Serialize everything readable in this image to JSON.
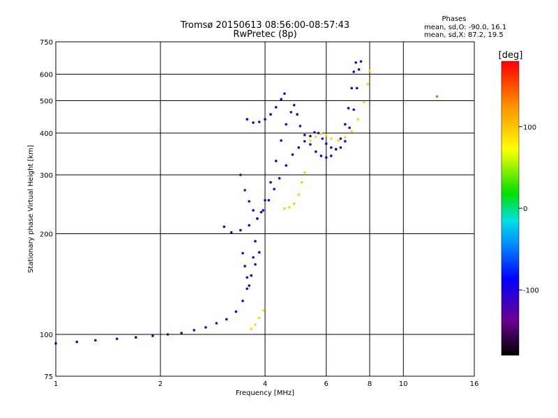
{
  "chart_data": {
    "type": "scatter",
    "title": "Tromsø 20150613 08:56:00-08:57:43",
    "subtitle": "RwPretec (8p)",
    "xlabel": "Frequency [MHz]",
    "ylabel": "Stationary phase Virtual Height [km]",
    "x_scale": "log",
    "y_scale": "log",
    "xlim": [
      1,
      16
    ],
    "ylim": [
      75,
      750
    ],
    "x_ticks": [
      1,
      2,
      4,
      6,
      8,
      10,
      16
    ],
    "x_tick_labels": [
      "1",
      "2",
      "4",
      "6",
      "8",
      "10",
      "16"
    ],
    "y_ticks": [
      75,
      100,
      200,
      300,
      400,
      500,
      600,
      750
    ],
    "y_tick_labels": [
      "75",
      "100",
      "200",
      "300",
      "400",
      "500",
      "600",
      "750"
    ],
    "grid": true,
    "stats": {
      "heading": "Phases",
      "line_o": "mean, sd,O: -90.0, 16.1",
      "line_x": "mean, sd,X:  87.2, 19.5"
    },
    "colorbar": {
      "label": "[deg]",
      "min": -180,
      "max": 180,
      "ticks": [
        100,
        0,
        -100
      ],
      "tick_labels": [
        "100",
        "0",
        "-100"
      ]
    },
    "traces": [
      {
        "name": "",
        "phase": -95,
        "points": [
          [
            1.0,
            94
          ],
          [
            1.15,
            95
          ],
          [
            1.3,
            96
          ],
          [
            1.5,
            97
          ],
          [
            1.7,
            98
          ],
          [
            1.9,
            99
          ],
          [
            2.1,
            100
          ],
          [
            2.3,
            101
          ],
          [
            2.5,
            103
          ],
          [
            2.7,
            105
          ],
          [
            2.9,
            108
          ],
          [
            3.1,
            111
          ],
          [
            3.3,
            117
          ],
          [
            3.45,
            126
          ],
          [
            3.55,
            137
          ],
          [
            3.65,
            150
          ],
          [
            3.75,
            162
          ],
          [
            3.85,
            176
          ]
        ]
      },
      {
        "name": "",
        "phase": -95,
        "points": [
          [
            3.05,
            210
          ],
          [
            3.2,
            202
          ],
          [
            3.4,
            205
          ],
          [
            3.6,
            212
          ],
          [
            3.8,
            222
          ],
          [
            3.95,
            235
          ],
          [
            4.1,
            252
          ],
          [
            4.25,
            272
          ],
          [
            4.4,
            293
          ],
          [
            4.6,
            320
          ],
          [
            4.8,
            345
          ],
          [
            5.0,
            362
          ],
          [
            5.2,
            378
          ],
          [
            5.4,
            392
          ],
          [
            5.55,
            402
          ],
          [
            5.7,
            400
          ],
          [
            5.85,
            385
          ],
          [
            6.0,
            372
          ],
          [
            6.2,
            362
          ],
          [
            6.4,
            358
          ],
          [
            6.6,
            362
          ],
          [
            6.8,
            378
          ],
          [
            7.0,
            415
          ],
          [
            7.2,
            470
          ],
          [
            7.35,
            545
          ],
          [
            7.45,
            620
          ],
          [
            7.55,
            655
          ]
        ]
      },
      {
        "name": "",
        "phase": -100,
        "points": [
          [
            3.4,
            300
          ],
          [
            3.5,
            270
          ],
          [
            3.6,
            250
          ],
          [
            3.7,
            235
          ],
          [
            3.8,
            222
          ],
          [
            3.9,
            232
          ],
          [
            4.0,
            252
          ],
          [
            4.15,
            285
          ],
          [
            4.3,
            330
          ],
          [
            4.45,
            380
          ],
          [
            4.6,
            425
          ],
          [
            4.75,
            462
          ],
          [
            4.85,
            485
          ],
          [
            4.95,
            455
          ],
          [
            5.05,
            420
          ],
          [
            5.2,
            395
          ],
          [
            5.4,
            370
          ],
          [
            5.6,
            352
          ],
          [
            5.8,
            342
          ],
          [
            6.0,
            338
          ],
          [
            6.2,
            342
          ],
          [
            6.4,
            358
          ],
          [
            6.6,
            385
          ],
          [
            6.8,
            425
          ],
          [
            6.95,
            475
          ],
          [
            7.1,
            545
          ],
          [
            7.2,
            610
          ],
          [
            7.3,
            650
          ]
        ]
      },
      {
        "name": "",
        "phase": -92,
        "points": [
          [
            3.55,
            440
          ],
          [
            3.7,
            430
          ],
          [
            3.85,
            432
          ],
          [
            4.0,
            440
          ],
          [
            4.15,
            455
          ],
          [
            4.3,
            478
          ],
          [
            4.45,
            505
          ],
          [
            4.55,
            525
          ]
        ]
      },
      {
        "name": "",
        "phase": -98,
        "points": [
          [
            3.45,
            175
          ],
          [
            3.5,
            160
          ],
          [
            3.55,
            148
          ],
          [
            3.6,
            140
          ],
          [
            3.65,
            150
          ],
          [
            3.7,
            170
          ],
          [
            3.75,
            190
          ]
        ]
      },
      {
        "name": "",
        "phase": 95,
        "points": [
          [
            4.55,
            238
          ],
          [
            4.7,
            240
          ],
          [
            4.85,
            246
          ],
          [
            5.0,
            262
          ],
          [
            5.1,
            285
          ],
          [
            5.2,
            305
          ]
        ]
      },
      {
        "name": "",
        "phase": 92,
        "points": [
          [
            5.4,
            380
          ],
          [
            5.6,
            390
          ],
          [
            5.8,
            398
          ],
          [
            6.0,
            395
          ],
          [
            6.2,
            385
          ],
          [
            6.5,
            380
          ],
          [
            6.8,
            388
          ],
          [
            7.1,
            405
          ],
          [
            7.4,
            440
          ],
          [
            7.7,
            495
          ],
          [
            7.9,
            560
          ],
          [
            8.0,
            615
          ]
        ]
      },
      {
        "name": "",
        "phase": 90,
        "points": [
          [
            3.65,
            104
          ],
          [
            3.75,
            107
          ],
          [
            3.85,
            112
          ],
          [
            3.95,
            118
          ]
        ]
      },
      {
        "name": "",
        "phase": 140,
        "points": [
          [
            12.5,
            515
          ]
        ]
      }
    ]
  }
}
